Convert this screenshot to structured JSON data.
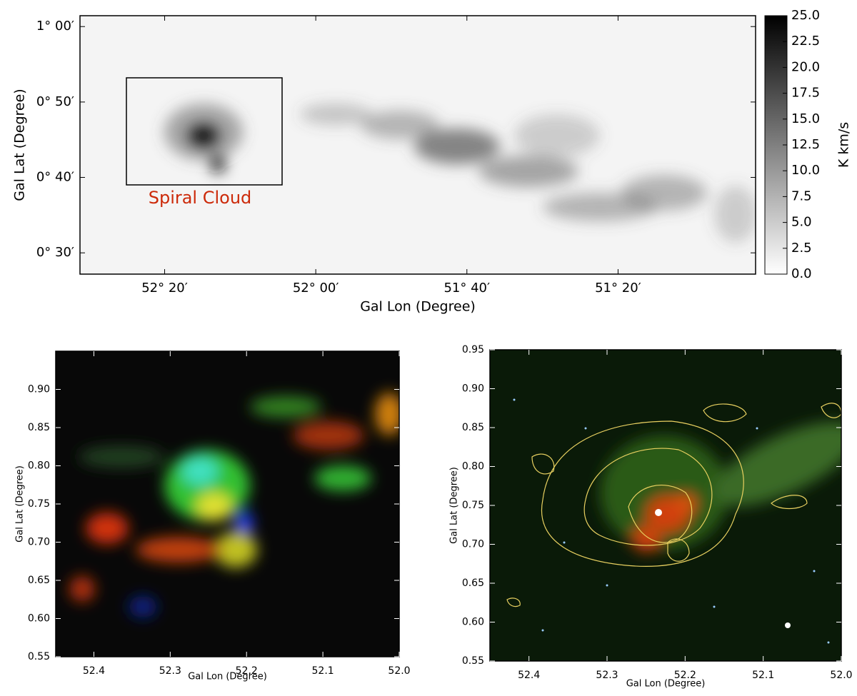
{
  "chart_data": [
    {
      "type": "image",
      "xlabel": "Gal Lon (Degree)",
      "ylabel": "Gal Lat (Degree)",
      "xlim": [
        52.52,
        51.03
      ],
      "ylim": [
        0.453,
        1.024
      ],
      "xticks": [
        {
          "value": 52.3333,
          "label": "52° 20′"
        },
        {
          "value": 52,
          "label": "52° 00′"
        },
        {
          "value": 51.6667,
          "label": "51° 40′"
        },
        {
          "value": 51.3333,
          "label": "51° 20′"
        }
      ],
      "yticks": [
        {
          "value": 0.5,
          "label": "0° 30′"
        },
        {
          "value": 0.6667,
          "label": "0° 40′"
        },
        {
          "value": 0.8333,
          "label": "0° 50′"
        },
        {
          "value": 1,
          "label": "1° 00′"
        }
      ],
      "annotations": [
        "Spiral Cloud"
      ],
      "colorbar": {
        "label": "K km/s",
        "lim": [
          0,
          25
        ],
        "ticks": [
          {
            "value": 0,
            "label": "0.0"
          },
          2.5,
          {
            "value": 5,
            "label": "5.0"
          },
          7.5,
          {
            "value": 10,
            "label": "10.0"
          },
          12.5,
          {
            "value": 15,
            "label": "15.0"
          },
          17.5,
          {
            "value": 20,
            "label": "20.0"
          },
          22.5,
          {
            "value": 25,
            "label": "25.0"
          }
        ]
      }
    },
    {
      "type": "image",
      "xlabel": "Gal Lon (Degree)",
      "ylabel": "Gal Lat (Degree)",
      "xlim": [
        52.45,
        52.0
      ],
      "ylim": [
        0.55,
        0.95
      ],
      "xticks": [
        52.4,
        52.3,
        52.2,
        52.1,
        {
          "value": 52,
          "label": "52.0"
        }
      ],
      "yticks": [
        0.55,
        {
          "value": 0.6,
          "label": "0.60"
        },
        0.65,
        {
          "value": 0.7,
          "label": "0.70"
        },
        0.75,
        {
          "value": 0.8,
          "label": "0.80"
        },
        0.85,
        {
          "value": 0.9,
          "label": "0.90"
        }
      ]
    },
    {
      "type": "image",
      "xlabel": "Gal Lon (Degree)",
      "ylabel": "Gal Lat (Degree)",
      "xlim": [
        52.45,
        52.0
      ],
      "ylim": [
        0.55,
        0.95
      ],
      "xticks": [
        52.4,
        52.3,
        52.2,
        52.1,
        {
          "value": 52,
          "label": "52.0"
        }
      ],
      "yticks": [
        0.55,
        {
          "value": 0.6,
          "label": "0.60"
        },
        0.65,
        {
          "value": 0.7,
          "label": "0.70"
        },
        0.75,
        {
          "value": 0.8,
          "label": "0.80"
        },
        0.85,
        {
          "value": 0.9,
          "label": "0.90"
        },
        0.95
      ]
    }
  ]
}
